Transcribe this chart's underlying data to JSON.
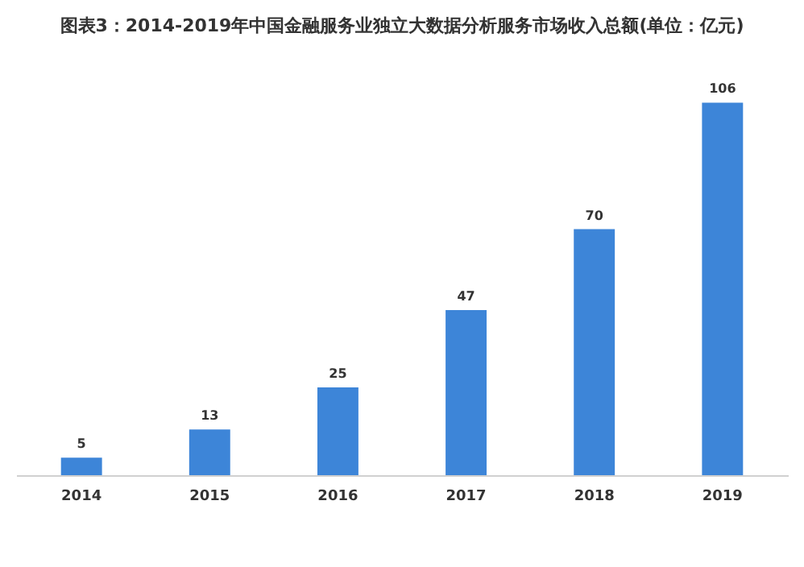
{
  "chart_data": {
    "type": "bar",
    "title": "图表3：2014-2019年中国金融服务业独立大数据分析服务市场收入总额(单位：亿元)",
    "categories": [
      "2014",
      "2015",
      "2016",
      "2017",
      "2018",
      "2019"
    ],
    "values": [
      5,
      13,
      25,
      47,
      70,
      106
    ],
    "color": "#3d85d8",
    "data_labels": true,
    "grid": false
  }
}
